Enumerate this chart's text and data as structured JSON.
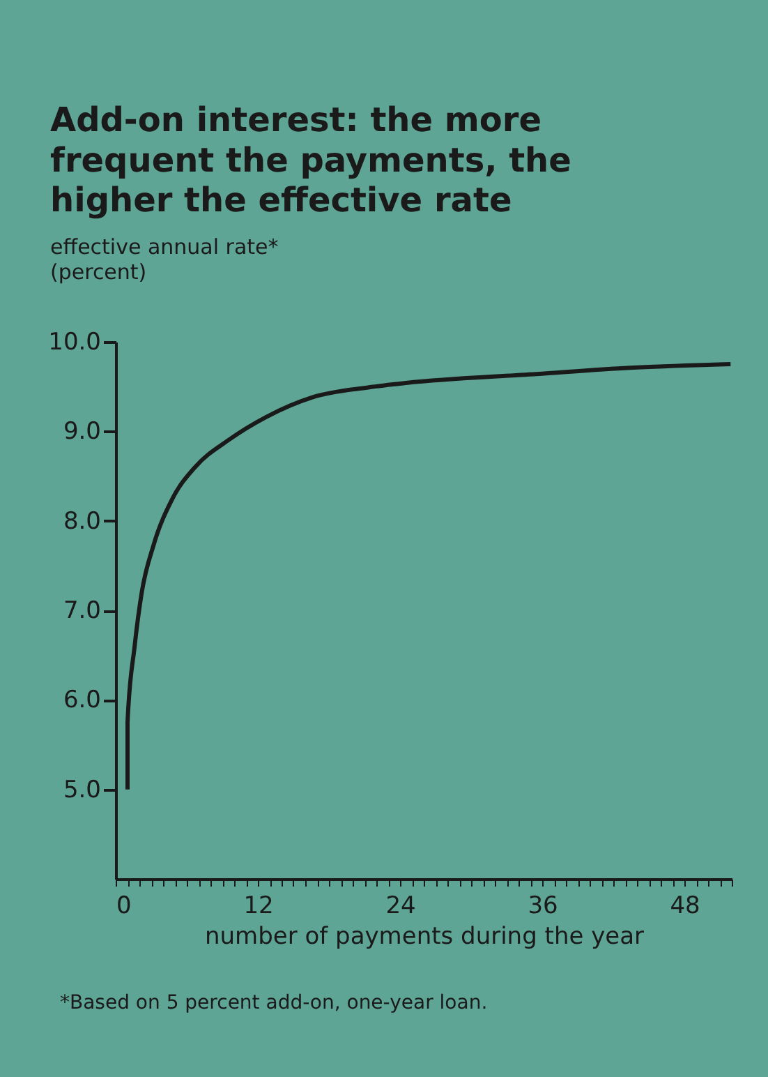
{
  "chart_data": {
    "type": "line",
    "title": "Add-on interest: the more frequent the payments, the higher the effective rate",
    "ylabel": "effective annual rate* (percent)",
    "xlabel": "number of payments during the year",
    "annotations": [
      "*Based on 5 percent add-on, one-year loan."
    ],
    "x": [
      1,
      1,
      1.6,
      2.2,
      3.2,
      4.8,
      6.7,
      9.5,
      12.7,
      16.6,
      21.3,
      24.5,
      35.5,
      43.4,
      51.9
    ],
    "series": [
      {
        "color": "#1a1a1a",
        "values": [
          5.0,
          5.75,
          6.6,
          7.2,
          7.73,
          8.25,
          8.6,
          8.9,
          9.16,
          9.38,
          9.49,
          9.54,
          9.64,
          9.71,
          9.75
        ]
      }
    ],
    "xlim": [
      0,
      52
    ],
    "ylim": [
      4.0,
      10.0
    ],
    "xticks": [
      0,
      {
        "value": 1,
        "label": null
      },
      {
        "value": 2,
        "label": null
      },
      {
        "value": 3,
        "label": null
      },
      {
        "value": 4,
        "label": null
      },
      {
        "value": 5,
        "label": null
      },
      {
        "value": 6,
        "label": null
      },
      {
        "value": 7,
        "label": null
      },
      {
        "value": 8,
        "label": null
      },
      {
        "value": 9,
        "label": null
      },
      {
        "value": 10,
        "label": null
      },
      {
        "value": 11,
        "label": null
      },
      12,
      {
        "value": 13,
        "label": null
      },
      {
        "value": 14,
        "label": null
      },
      {
        "value": 15,
        "label": null
      },
      {
        "value": 16,
        "label": null
      },
      {
        "value": 17,
        "label": null
      },
      {
        "value": 18,
        "label": null
      },
      {
        "value": 19,
        "label": null
      },
      {
        "value": 20,
        "label": null
      },
      {
        "value": 21,
        "label": null
      },
      {
        "value": 22,
        "label": null
      },
      {
        "value": 23,
        "label": null
      },
      24,
      {
        "value": 25,
        "label": null
      },
      {
        "value": 26,
        "label": null
      },
      {
        "value": 27,
        "label": null
      },
      {
        "value": 28,
        "label": null
      },
      {
        "value": 29,
        "label": null
      },
      {
        "value": 30,
        "label": null
      },
      {
        "value": 31,
        "label": null
      },
      {
        "value": 32,
        "label": null
      },
      {
        "value": 33,
        "label": null
      },
      {
        "value": 34,
        "label": null
      },
      {
        "value": 35,
        "label": null
      },
      36,
      {
        "value": 37,
        "label": null
      },
      {
        "value": 38,
        "label": null
      },
      {
        "value": 39,
        "label": null
      },
      {
        "value": 40,
        "label": null
      },
      {
        "value": 41,
        "label": null
      },
      {
        "value": 42,
        "label": null
      },
      {
        "value": 43,
        "label": null
      },
      {
        "value": 44,
        "label": null
      },
      {
        "value": 45,
        "label": null
      },
      {
        "value": 46,
        "label": null
      },
      {
        "value": 47,
        "label": null
      },
      48,
      {
        "value": 49,
        "label": null
      },
      {
        "value": 50,
        "label": null
      },
      {
        "value": 51,
        "label": null
      },
      {
        "value": 52,
        "label": null
      }
    ],
    "yticks": [
      {
        "value": 5,
        "label": "5.0"
      },
      {
        "value": 6,
        "label": "6.0"
      },
      {
        "value": 7,
        "label": "7.0"
      },
      {
        "value": 8,
        "label": "8.0"
      },
      {
        "value": 9,
        "label": "9.0"
      },
      {
        "value": 10,
        "label": "10.0"
      }
    ],
    "grid": false,
    "legend": false,
    "marker": "none",
    "line_style": "solid"
  }
}
